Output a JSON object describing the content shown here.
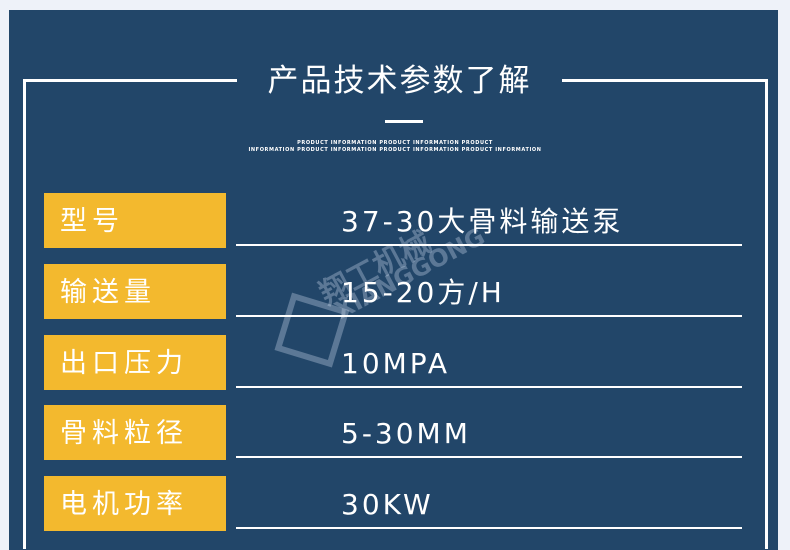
{
  "header": {
    "title": "产品技术参数了解",
    "subtitle_line1": "PRODUCT INFORMATION PRODUCT INFORMATION PRODUCT",
    "subtitle_line2": "INFORMATION PRODUCT INFORMATION PRODUCT INFORMATION PRODUCT INFORMATION"
  },
  "watermark": {
    "cn": "翔工机械",
    "en": "XIANGGONG"
  },
  "specs": [
    {
      "label": "型号",
      "value": "37-30大骨料输送泵"
    },
    {
      "label": "输送量",
      "value": "15-20方/H"
    },
    {
      "label": "出口压力",
      "value": "10MPA"
    },
    {
      "label": "骨料粒径",
      "value": "5-30MM"
    },
    {
      "label": "电机功率",
      "value": "30KW"
    }
  ],
  "colors": {
    "background": "#224669",
    "label_bg": "#f3b92e",
    "text": "#ffffff"
  }
}
